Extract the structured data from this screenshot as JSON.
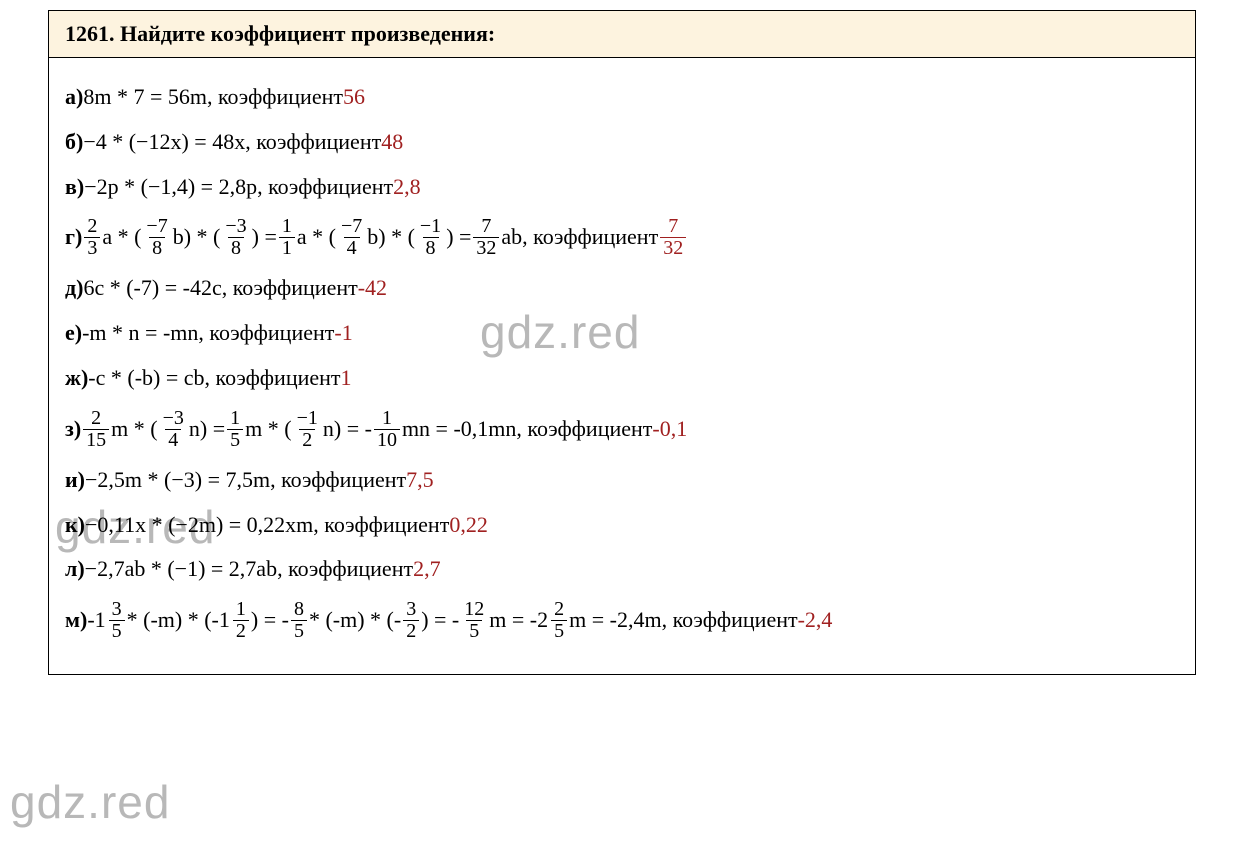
{
  "watermark_text": "gdz.red",
  "header": "1261. Найдите коэффициент произведения:",
  "colors": {
    "coef": "#a02020",
    "watermark": "#b8b8b8",
    "header_bg": "#fdf3df",
    "border": "#000000"
  },
  "rows": {
    "a": {
      "label": "а) ",
      "expr": "8m * 7 = 56m, коэффициент ",
      "coef": "56"
    },
    "b": {
      "label": "б) ",
      "expr": "−4 * (−12x) = 48x, коэффициент ",
      "coef": "48"
    },
    "v": {
      "label": "в) ",
      "expr": "−2p * (−1,4) = 2,8p, коэффициент ",
      "coef": "2,8"
    },
    "g": {
      "label": "г) ",
      "f1": {
        "n": "2",
        "d": "3"
      },
      "t1": "a * (",
      "f2": {
        "n": "−7",
        "d": "8"
      },
      "t2": "b) * (",
      "f3": {
        "n": "−3",
        "d": "8"
      },
      "t3": ") = ",
      "f4": {
        "n": "1",
        "d": "1"
      },
      "t4": "a * (",
      "f5": {
        "n": "−7",
        "d": "4"
      },
      "t5": "b) * (",
      "f6": {
        "n": "−1",
        "d": "8"
      },
      "t6": ") = ",
      "f7": {
        "n": "7",
        "d": "32"
      },
      "t7": "ab, коэффициент ",
      "coef_frac": {
        "n": "7",
        "d": "32"
      }
    },
    "d": {
      "label": "д) ",
      "expr": "6c * (-7) = -42c, коэффициент ",
      "coef": "-42"
    },
    "e": {
      "label": "е) ",
      "expr": "-m * n = -mn, коэффициент ",
      "coef": "-1"
    },
    "zh": {
      "label": "ж) ",
      "expr": "-c * (-b) = cb, коэффициент ",
      "coef": "1"
    },
    "z": {
      "label": "з) ",
      "f1": {
        "n": "2",
        "d": "15"
      },
      "t1": "m * (",
      "f2": {
        "n": "−3",
        "d": "4"
      },
      "t2": "n) = ",
      "f3": {
        "n": "1",
        "d": "5"
      },
      "t3": "m * (",
      "f4": {
        "n": "−1",
        "d": "2"
      },
      "t4": "n) = - ",
      "f5": {
        "n": "1",
        "d": "10"
      },
      "t5": "mn = -0,1mn, коэффициент ",
      "coef": "-0,1"
    },
    "i": {
      "label": "и) ",
      "expr": "−2,5m * (−3) = 7,5m, коэффициент ",
      "coef": "7,5"
    },
    "k": {
      "label": "к) ",
      "expr": "−0,11x * (−2m) = 0,22xm, коэффициент ",
      "coef": "0,22"
    },
    "l": {
      "label": "л) ",
      "expr": "−2,7ab * (−1) = 2,7ab, коэффициент ",
      "coef": "2,7"
    },
    "m": {
      "label": "м) ",
      "pre": "-",
      "mx1": {
        "w": "1",
        "n": "3",
        "d": "5"
      },
      "t1": "* (-m) * (-",
      "mx2": {
        "w": "1",
        "n": "1",
        "d": "2"
      },
      "t2": ") = - ",
      "f3": {
        "n": "8",
        "d": "5"
      },
      "t3": "* (-m) * (- ",
      "f4": {
        "n": "3",
        "d": "2"
      },
      "t4": ") = - ",
      "f5": {
        "n": "12",
        "d": "5"
      },
      "t5": "m = -",
      "mx6": {
        "w": "2",
        "n": "2",
        "d": "5"
      },
      "t6": "m = -2,4m, коэффициент ",
      "coef": "-2,4"
    }
  }
}
